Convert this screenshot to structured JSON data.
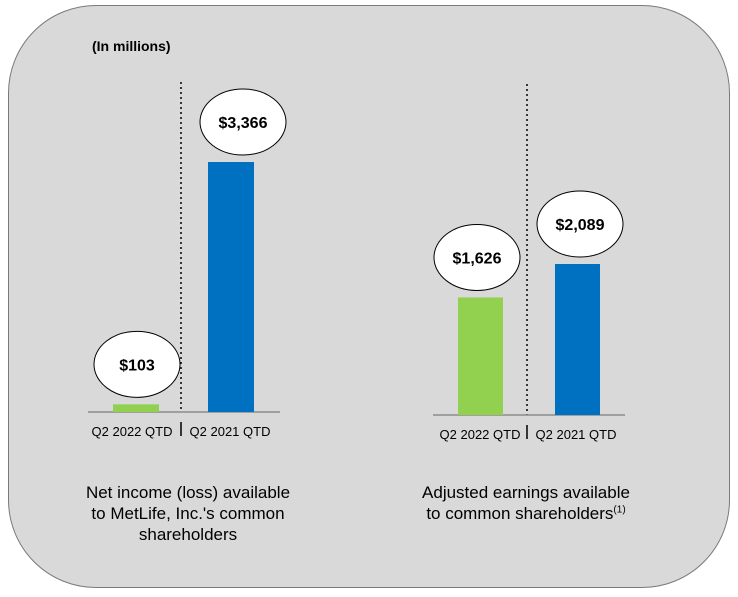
{
  "units_label": "(In millions)",
  "colors": {
    "q2_2022": "#92d050",
    "q2_2021": "#0070c0",
    "panel": "#d9d9d9"
  },
  "chart_data": [
    {
      "type": "bar",
      "title": "Net income (loss) available to MetLife, Inc.'s common shareholders",
      "title_lines": [
        "Net income (loss) available",
        "to MetLife, Inc.'s common",
        "shareholders"
      ],
      "categories": [
        "Q2 2022 QTD",
        "Q2 2021 QTD"
      ],
      "values": [
        103,
        3366
      ],
      "data_labels": [
        "$103",
        "$3,366"
      ],
      "ylim": [
        0,
        3600
      ]
    },
    {
      "type": "bar",
      "title": "Adjusted earnings available to common shareholders(1)",
      "title_lines": [
        "Adjusted earnings available",
        "to common shareholders"
      ],
      "title_footnote": "(1)",
      "categories": [
        "Q2 2022 QTD",
        "Q2 2021 QTD"
      ],
      "values": [
        1626,
        2089
      ],
      "data_labels": [
        "$1,626",
        "$2,089"
      ],
      "ylim": [
        0,
        2300
      ]
    }
  ]
}
